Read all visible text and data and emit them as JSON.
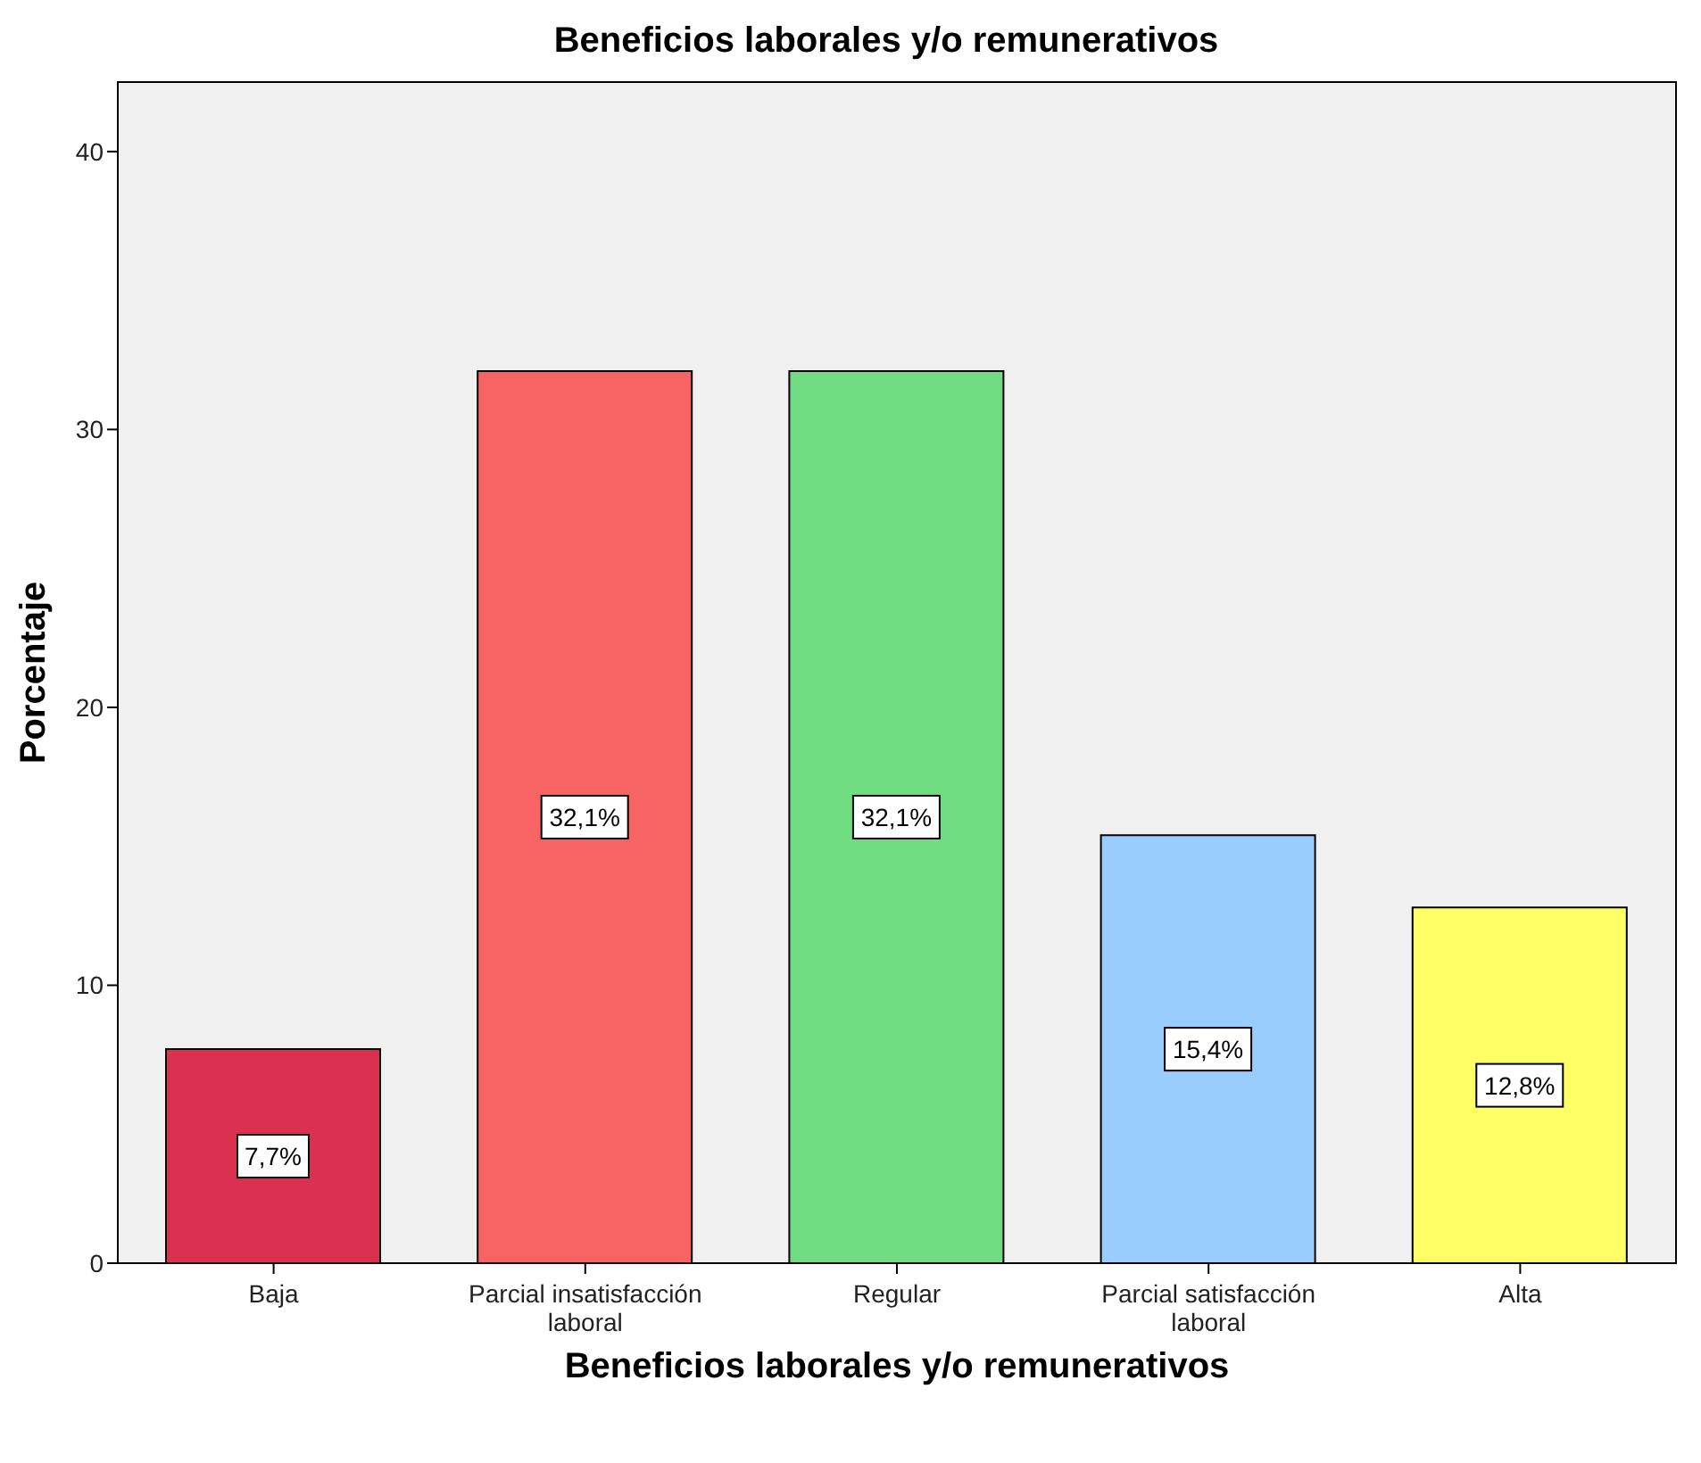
{
  "chart_data": {
    "type": "bar",
    "title": "Beneficios laborales y/o remunerativos",
    "xlabel": "Beneficios laborales y/o remunerativos",
    "ylabel": "Porcentaje",
    "categories": [
      "Baja",
      "Parcial insatisfacción laboral",
      "Regular",
      "Parcial satisfacción laboral",
      "Alta"
    ],
    "values": [
      7.7,
      32.1,
      32.1,
      15.4,
      12.8
    ],
    "value_labels": [
      "7,7%",
      "32,1%",
      "32,1%",
      "15,4%",
      "12,8%"
    ],
    "colors": [
      "#dc3050",
      "#f86464",
      "#6fdc82",
      "#99ccff",
      "#ffff66"
    ],
    "ylim": [
      0,
      42.5
    ],
    "yticks": [
      0,
      10,
      20,
      30,
      40
    ]
  }
}
